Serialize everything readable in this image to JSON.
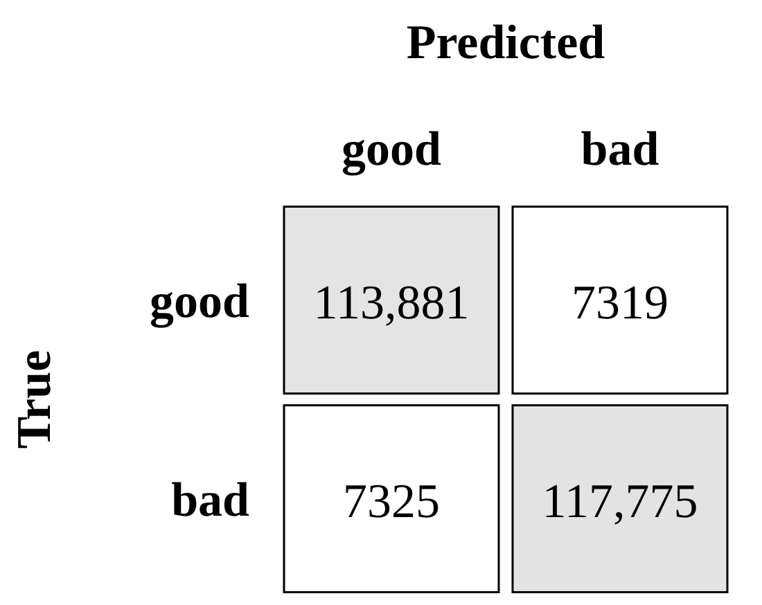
{
  "chart_data": {
    "type": "heatmap",
    "xlabel": "Predicted",
    "ylabel": "True",
    "categories": [
      "good",
      "bad"
    ],
    "y_categories": [
      "good",
      "bad"
    ],
    "cells": [
      [
        113881,
        7319
      ],
      [
        7325,
        117775
      ]
    ],
    "cell_labels": [
      [
        "113,881",
        "7319"
      ],
      [
        "7325",
        "117,775"
      ]
    ]
  }
}
